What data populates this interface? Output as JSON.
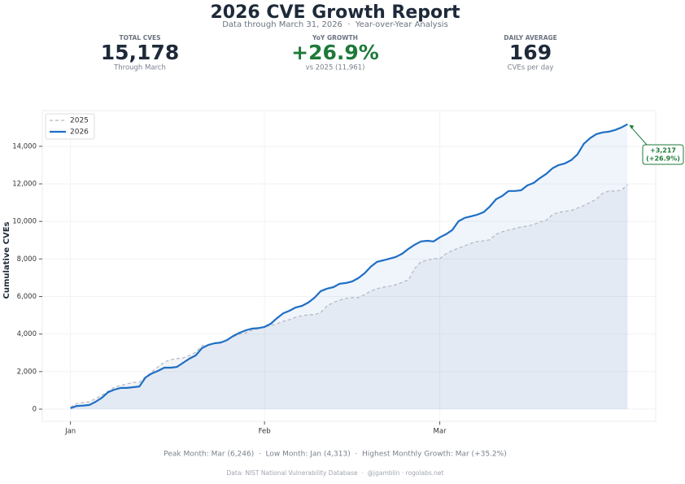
{
  "chart_data": {
    "type": "line",
    "title": "2026 CVE Growth Report",
    "subtitle": "Data through March 31, 2026  ·  Year-over-Year Analysis",
    "ylabel": "Cumulative CVEs",
    "xlim": [
      -3.5,
      94.5
    ],
    "xticks": [
      {
        "value": 1,
        "label": "Jan"
      },
      {
        "value": 32,
        "label": "Feb"
      },
      {
        "value": 60,
        "label": "Mar"
      }
    ],
    "ylim": [
      -650,
      15900
    ],
    "yticks": [
      0,
      {
        "value": 2000,
        "label": "2,000"
      },
      {
        "value": 4000,
        "label": "4,000"
      },
      {
        "value": 6000,
        "label": "6,000"
      },
      {
        "value": 8000,
        "label": "8,000"
      },
      {
        "value": 10000,
        "label": "10,000"
      },
      {
        "value": 12000,
        "label": "12,000"
      },
      {
        "value": 14000,
        "label": "14,000"
      }
    ],
    "grid": true,
    "legend": "upper left",
    "x": [
      1,
      2,
      3,
      4,
      5,
      6,
      7,
      8,
      9,
      10,
      11,
      12,
      13,
      14,
      15,
      16,
      17,
      18,
      19,
      20,
      21,
      22,
      23,
      24,
      25,
      26,
      27,
      28,
      29,
      30,
      31,
      32,
      33,
      34,
      35,
      36,
      37,
      38,
      39,
      40,
      41,
      42,
      43,
      44,
      45,
      46,
      47,
      48,
      49,
      50,
      51,
      52,
      53,
      54,
      55,
      56,
      57,
      58,
      59,
      60,
      61,
      62,
      63,
      64,
      65,
      66,
      67,
      68,
      69,
      70,
      71,
      72,
      73,
      74,
      75,
      76,
      77,
      78,
      79,
      80,
      81,
      82,
      83,
      84,
      85,
      86,
      87,
      88,
      89,
      90
    ],
    "series": [
      {
        "name": "2025",
        "color": "#b3b7be",
        "dashed": true,
        "values": [
          100,
          300,
          350,
          390,
          560,
          740,
          950,
          1170,
          1260,
          1340,
          1430,
          1430,
          1730,
          1990,
          2250,
          2510,
          2640,
          2690,
          2730,
          2860,
          3030,
          3380,
          3420,
          3510,
          3550,
          3680,
          3860,
          3990,
          4070,
          4200,
          4290,
          4380,
          4460,
          4550,
          4680,
          4770,
          4900,
          4980,
          5030,
          5030,
          5160,
          5500,
          5680,
          5810,
          5900,
          5940,
          5940,
          6110,
          6290,
          6420,
          6500,
          6550,
          6630,
          6760,
          6890,
          7500,
          7850,
          7930,
          8020,
          8020,
          8280,
          8450,
          8580,
          8710,
          8840,
          8930,
          8970,
          9020,
          9320,
          9450,
          9540,
          9620,
          9710,
          9750,
          9840,
          9970,
          10060,
          10360,
          10490,
          10530,
          10580,
          10710,
          10840,
          11010,
          11180,
          11490,
          11620,
          11620,
          11660,
          11961
        ]
      },
      {
        "name": "2026",
        "color": "#1f6fc5",
        "dashed": false,
        "values": [
          50,
          170,
          190,
          220,
          390,
          600,
          900,
          1040,
          1130,
          1130,
          1170,
          1210,
          1690,
          1900,
          2040,
          2210,
          2210,
          2250,
          2470,
          2690,
          2860,
          3250,
          3420,
          3510,
          3550,
          3680,
          3900,
          4070,
          4200,
          4290,
          4313,
          4380,
          4550,
          4850,
          5110,
          5240,
          5420,
          5500,
          5680,
          5940,
          6290,
          6420,
          6500,
          6680,
          6720,
          6800,
          6980,
          7240,
          7590,
          7850,
          7930,
          8020,
          8110,
          8280,
          8540,
          8760,
          8932,
          8970,
          8932,
          9150,
          9320,
          9540,
          10010,
          10190,
          10270,
          10360,
          10490,
          10790,
          11180,
          11360,
          11620,
          11620,
          11660,
          11920,
          12050,
          12310,
          12530,
          12830,
          13000,
          13090,
          13260,
          13570,
          14130,
          14430,
          14650,
          14740,
          14780,
          14870,
          15000,
          15178
        ]
      }
    ],
    "annotation": {
      "lines": [
        "+3,217",
        "(+26.9%)"
      ],
      "color": "#1e7a3a"
    }
  },
  "stats": [
    {
      "label": "TOTAL CVES",
      "value": "15,178",
      "sub": "Through March",
      "color": "#1e2a3a"
    },
    {
      "label": "YoY GROWTH",
      "value": "+26.9%",
      "sub": "vs 2025 (11,961)",
      "color": "#1e7a3a"
    },
    {
      "label": "DAILY AVERAGE",
      "value": "169",
      "sub": "CVEs per day",
      "color": "#1e2a3a"
    }
  ],
  "footer": {
    "summary": "Peak Month: Mar (6,246)  ·  Low Month: Jan (4,313)  ·  Highest Monthly Growth: Mar (+35.2%)",
    "source": "Data: NIST National Vulnerability Database  ·  @jgamblin · rogolabs.net"
  }
}
